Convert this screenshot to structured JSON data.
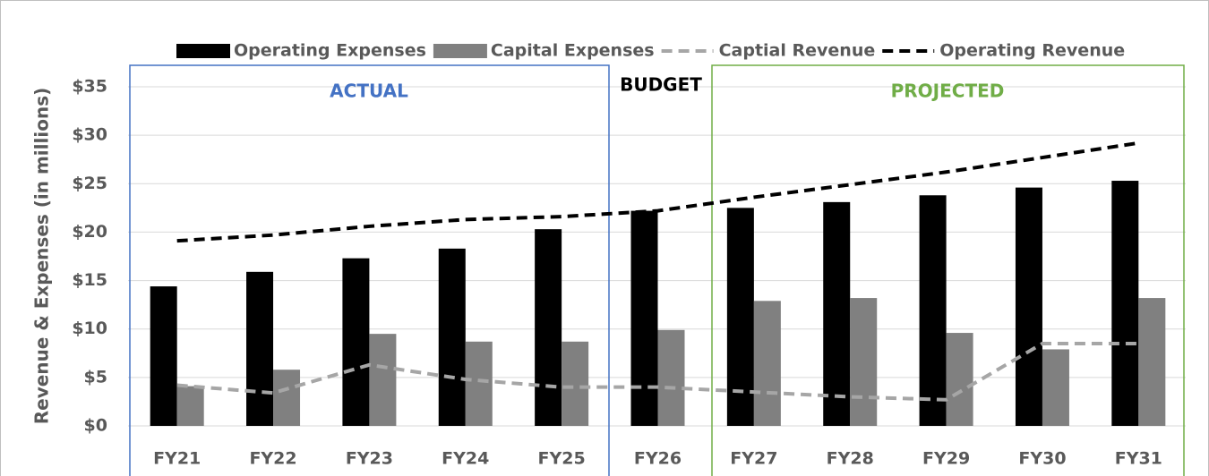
{
  "chart_data": {
    "type": "bar",
    "y_label": "Revenue & Expenses (in millions)",
    "categories": [
      "FY21",
      "FY22",
      "FY23",
      "FY24",
      "FY25",
      "FY26",
      "FY27",
      "FY28",
      "FY29",
      "FY30",
      "FY31"
    ],
    "series": [
      {
        "name": "Operating Expenses",
        "type": "bar",
        "color": "#000000",
        "values": [
          14.4,
          15.9,
          17.3,
          18.3,
          20.3,
          22.2,
          22.5,
          23.1,
          23.8,
          24.6,
          25.3
        ]
      },
      {
        "name": "Capital Expenses",
        "type": "bar",
        "color": "#808080",
        "values": [
          4.1,
          5.8,
          9.5,
          8.7,
          8.7,
          9.9,
          12.9,
          13.2,
          9.6,
          7.9,
          13.2
        ]
      },
      {
        "name": "Captial Revenue",
        "type": "line",
        "dashed": true,
        "color": "#a6a6a6",
        "values": [
          4.2,
          3.4,
          6.3,
          4.8,
          4.0,
          4.0,
          3.5,
          3.0,
          2.7,
          8.5,
          8.5
        ]
      },
      {
        "name": "Operating Revenue",
        "type": "line",
        "dashed": true,
        "color": "#000000",
        "values": [
          19.1,
          19.7,
          20.6,
          21.3,
          21.6,
          22.2,
          23.6,
          24.9,
          26.2,
          27.7,
          29.2
        ]
      }
    ],
    "annotations": [
      {
        "text": "ACTUAL",
        "color": "#4472c4"
      },
      {
        "text": "BUDGET",
        "color": "#000000"
      },
      {
        "text": "PROJECTED",
        "color": "#70ad47"
      }
    ],
    "ylim": [
      0,
      35
    ],
    "yticks": [
      {
        "value": 0,
        "label": "$0"
      },
      {
        "value": 5,
        "label": "$5"
      },
      {
        "value": 10,
        "label": "$10"
      },
      {
        "value": 15,
        "label": "$15"
      },
      {
        "value": 20,
        "label": "$20"
      },
      {
        "value": 25,
        "label": "$25"
      },
      {
        "value": 30,
        "label": "$30"
      },
      {
        "value": 35,
        "label": "$35"
      }
    ],
    "grid": true,
    "legend": "top"
  }
}
